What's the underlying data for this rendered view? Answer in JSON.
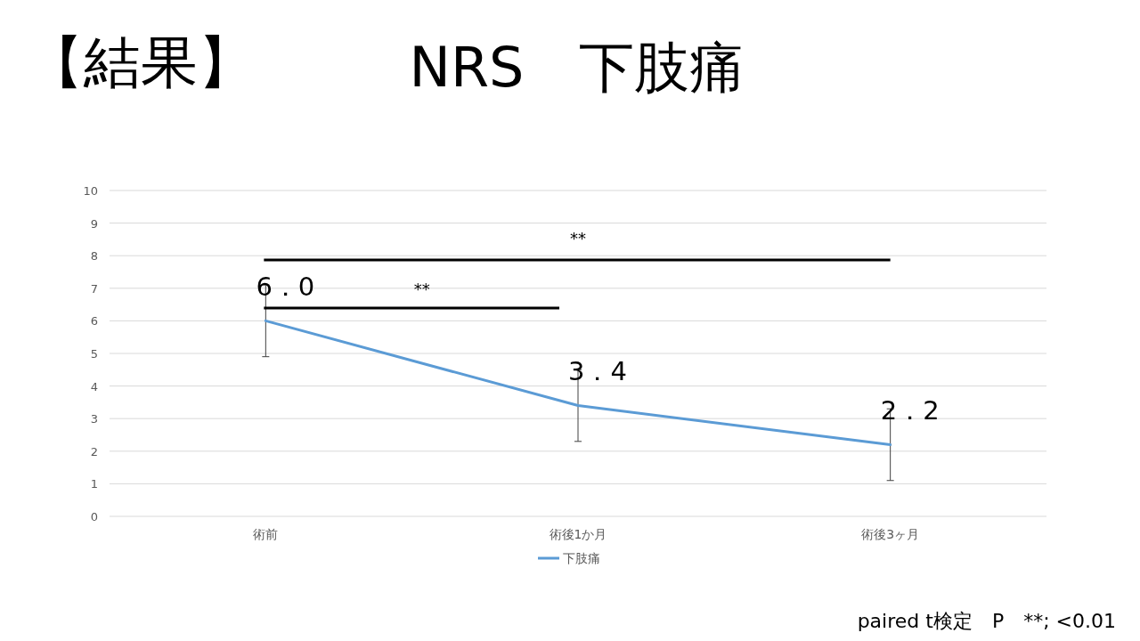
{
  "chart_data": {
    "type": "line",
    "title": "NRS　下肢痛",
    "subtitle": "【結果】",
    "categories": [
      "術前",
      "術後1か月",
      "術後3ヶ月"
    ],
    "series": [
      {
        "name": "下肢痛",
        "color": "#5b9bd5",
        "values": [
          6.0,
          3.4,
          2.2
        ],
        "errors": [
          1.1,
          1.1,
          1.1
        ],
        "value_labels": [
          "6．0",
          "3．4",
          "2．2"
        ]
      }
    ],
    "ylim": [
      0,
      10
    ],
    "yticks": [
      0,
      1,
      2,
      3,
      4,
      5,
      6,
      7,
      8,
      9,
      10
    ],
    "grid": "y",
    "legend": "bottom",
    "marker": "none",
    "line_style": "solid",
    "annotations": [
      "**",
      "**",
      "paired t検定　P　**; <0.01"
    ]
  }
}
